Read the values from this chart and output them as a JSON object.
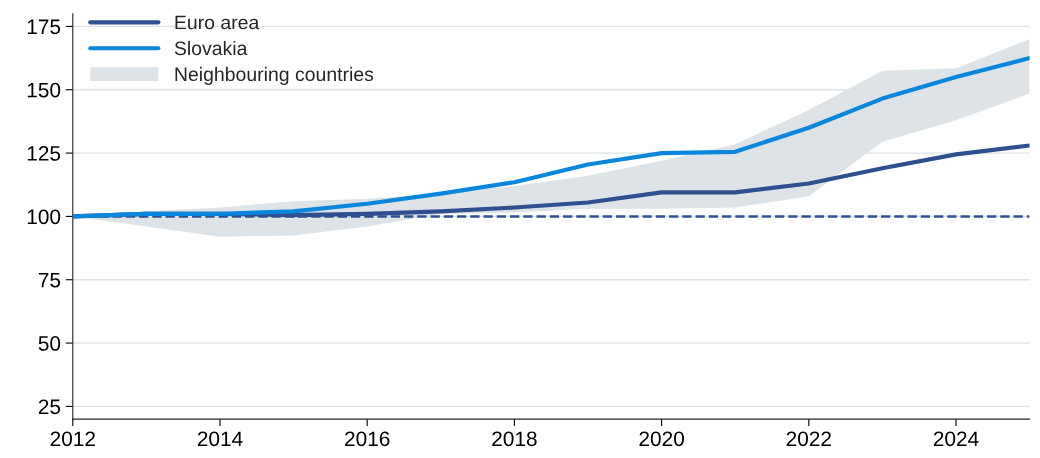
{
  "chart_data": {
    "type": "line",
    "x": [
      2012,
      2013,
      2014,
      2015,
      2016,
      2017,
      2018,
      2019,
      2020,
      2021,
      2022,
      2023,
      2024,
      2025
    ],
    "series": [
      {
        "name": "Euro area",
        "color": "#2e5090",
        "values": [
          100,
          101,
          101,
          100.5,
          101,
          102,
          103.5,
          105.5,
          109.5,
          109.5,
          113,
          119,
          124.5,
          128
        ]
      },
      {
        "name": "Slovakia",
        "color": "#0a87dc",
        "values": [
          100,
          101,
          101,
          102,
          105,
          109,
          113.5,
          120.5,
          125,
          125.5,
          135,
          146.5,
          155,
          162.5
        ]
      },
      {
        "name": "Neighbouring countries",
        "type": "area",
        "color": "#dde3e6",
        "values": [
          null,
          null,
          null,
          null,
          null,
          null,
          null,
          null,
          null,
          null,
          null,
          null,
          null,
          null
        ],
        "lower": [
          100,
          96,
          92,
          92.5,
          96,
          101,
          101.5,
          103,
          103,
          103.5,
          108,
          129.5,
          138,
          148.5
        ],
        "upper": [
          100,
          102,
          103.5,
          106,
          107,
          109,
          112,
          116,
          122,
          128.5,
          142,
          157.5,
          158.5,
          170
        ]
      }
    ],
    "xlim": [
      2012,
      2025
    ],
    "xticks": [
      2012,
      2014,
      2016,
      2018,
      2020,
      2022,
      2024
    ],
    "ylim": [
      20,
      180
    ],
    "yticks": [
      25,
      50,
      75,
      100,
      125,
      150,
      175
    ],
    "ref_lines": [
      {
        "axis": "y",
        "value": 100,
        "color": "#2e5090",
        "line_style": "dashed"
      }
    ],
    "grid": "y",
    "legend": "top left",
    "line_style": "solid",
    "marker": "none"
  }
}
